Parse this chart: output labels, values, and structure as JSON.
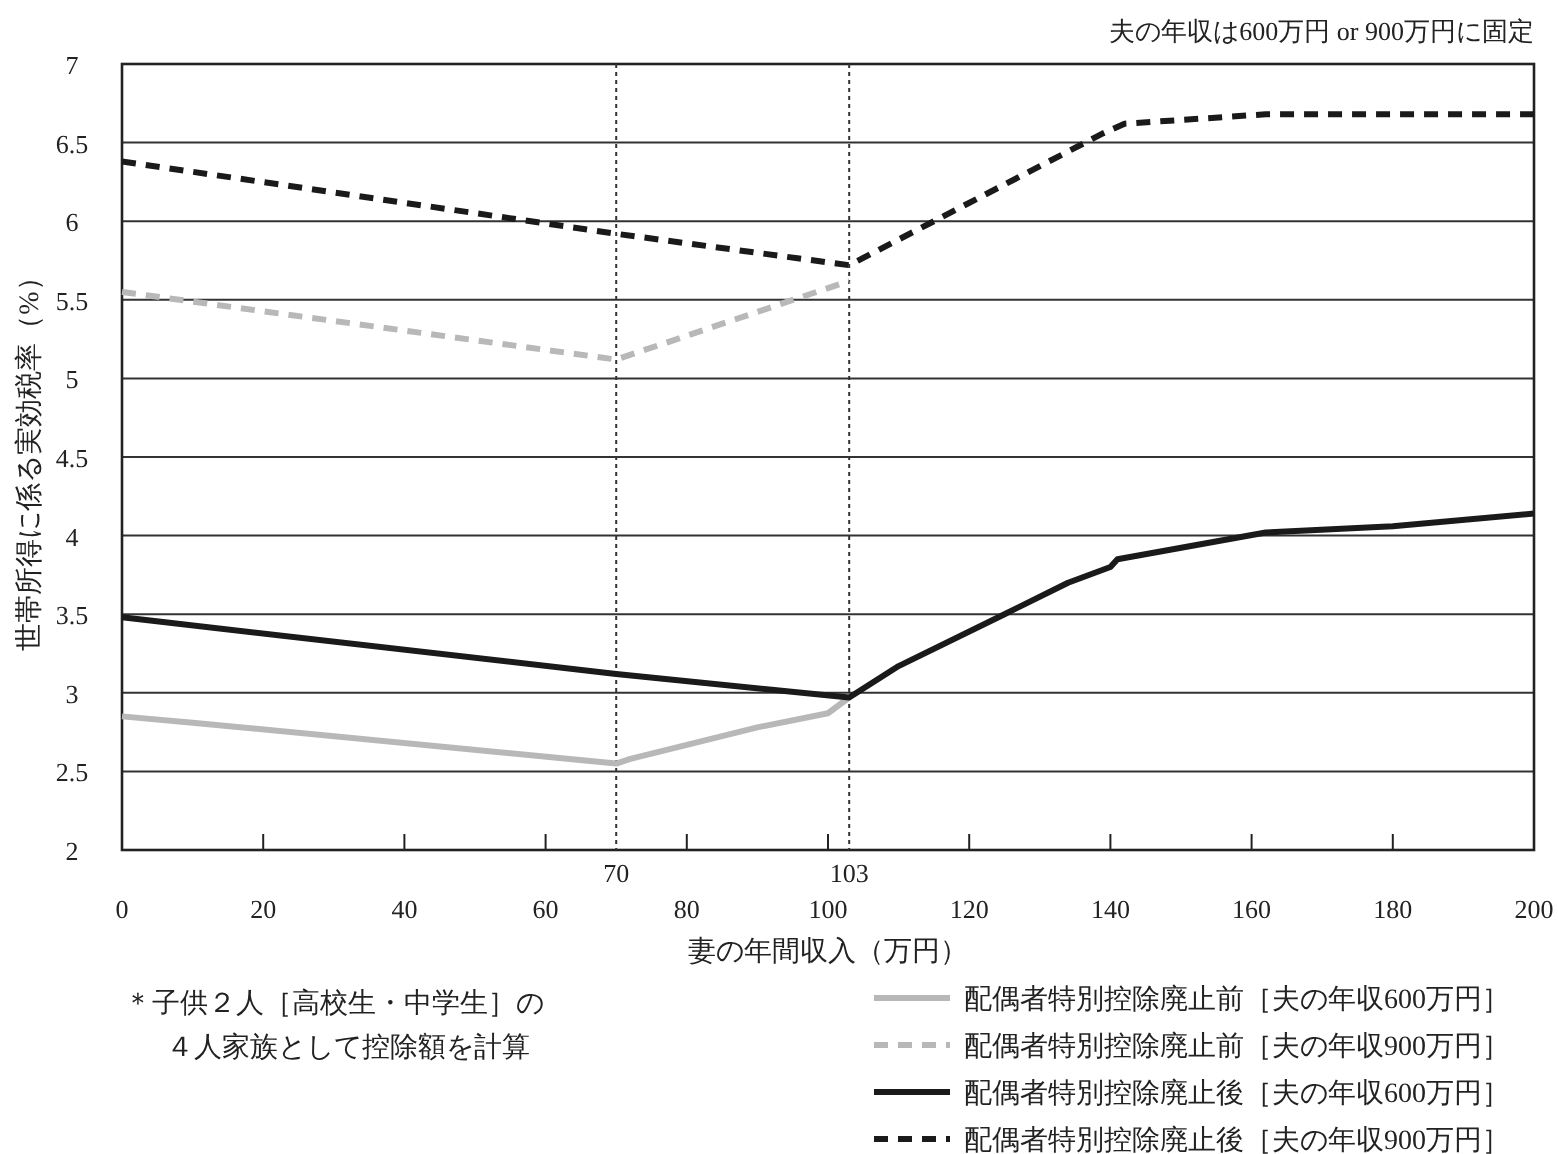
{
  "chart_data": {
    "type": "line",
    "xlabel": "妻の年間収入（万円）",
    "ylabel": "世帯所得に係る実効税率（%）",
    "annotations": [
      "夫の年収は600万円 or 900万円に固定",
      "＊子供２人［高校生・中学生］の",
      "４人家族として控除額を計算"
    ],
    "xlim": [
      0,
      200
    ],
    "xticks": [
      0,
      20,
      40,
      60,
      80,
      100,
      120,
      140,
      160,
      180,
      200
    ],
    "ylim": [
      2,
      7
    ],
    "yticks": [
      2,
      2.5,
      3,
      3.5,
      4,
      4.5,
      5,
      5.5,
      6,
      6.5,
      7
    ],
    "grid": "y",
    "legend": "bottom right",
    "ref_lines": [
      {
        "axis": "x",
        "value": 70,
        "label": "70",
        "line_style": "dotted"
      },
      {
        "axis": "x",
        "value": 103,
        "label": "103",
        "line_style": "dotted"
      }
    ],
    "series": [
      {
        "name": "配偶者特別控除廃止前［夫の年収600万円］",
        "color": "#b8b8b8",
        "line_style": "solid",
        "x": [
          0,
          10,
          70,
          72,
          90,
          100,
          103
        ],
        "values": [
          2.85,
          2.81,
          2.55,
          2.58,
          2.78,
          2.87,
          2.97
        ]
      },
      {
        "name": "配偶者特別控除廃止前［夫の年収900万円］",
        "color": "#b8b8b8",
        "line_style": "dashed",
        "x": [
          0,
          70,
          103
        ],
        "values": [
          5.55,
          5.12,
          5.62
        ]
      },
      {
        "name": "配偶者特別控除廃止後［夫の年収600万円］",
        "color": "#1a1a1a",
        "line_style": "solid",
        "x": [
          0,
          70,
          103,
          110,
          125,
          134,
          140,
          141,
          162,
          180,
          200
        ],
        "values": [
          3.48,
          3.12,
          2.97,
          3.17,
          3.5,
          3.7,
          3.8,
          3.85,
          4.02,
          4.06,
          4.14
        ]
      },
      {
        "name": "配偶者特別控除廃止後［夫の年収900万円］",
        "color": "#1a1a1a",
        "line_style": "dashed",
        "x": [
          0,
          70,
          103,
          139,
          142,
          162,
          200
        ],
        "values": [
          6.38,
          5.92,
          5.72,
          6.56,
          6.62,
          6.68,
          6.68
        ]
      }
    ]
  }
}
